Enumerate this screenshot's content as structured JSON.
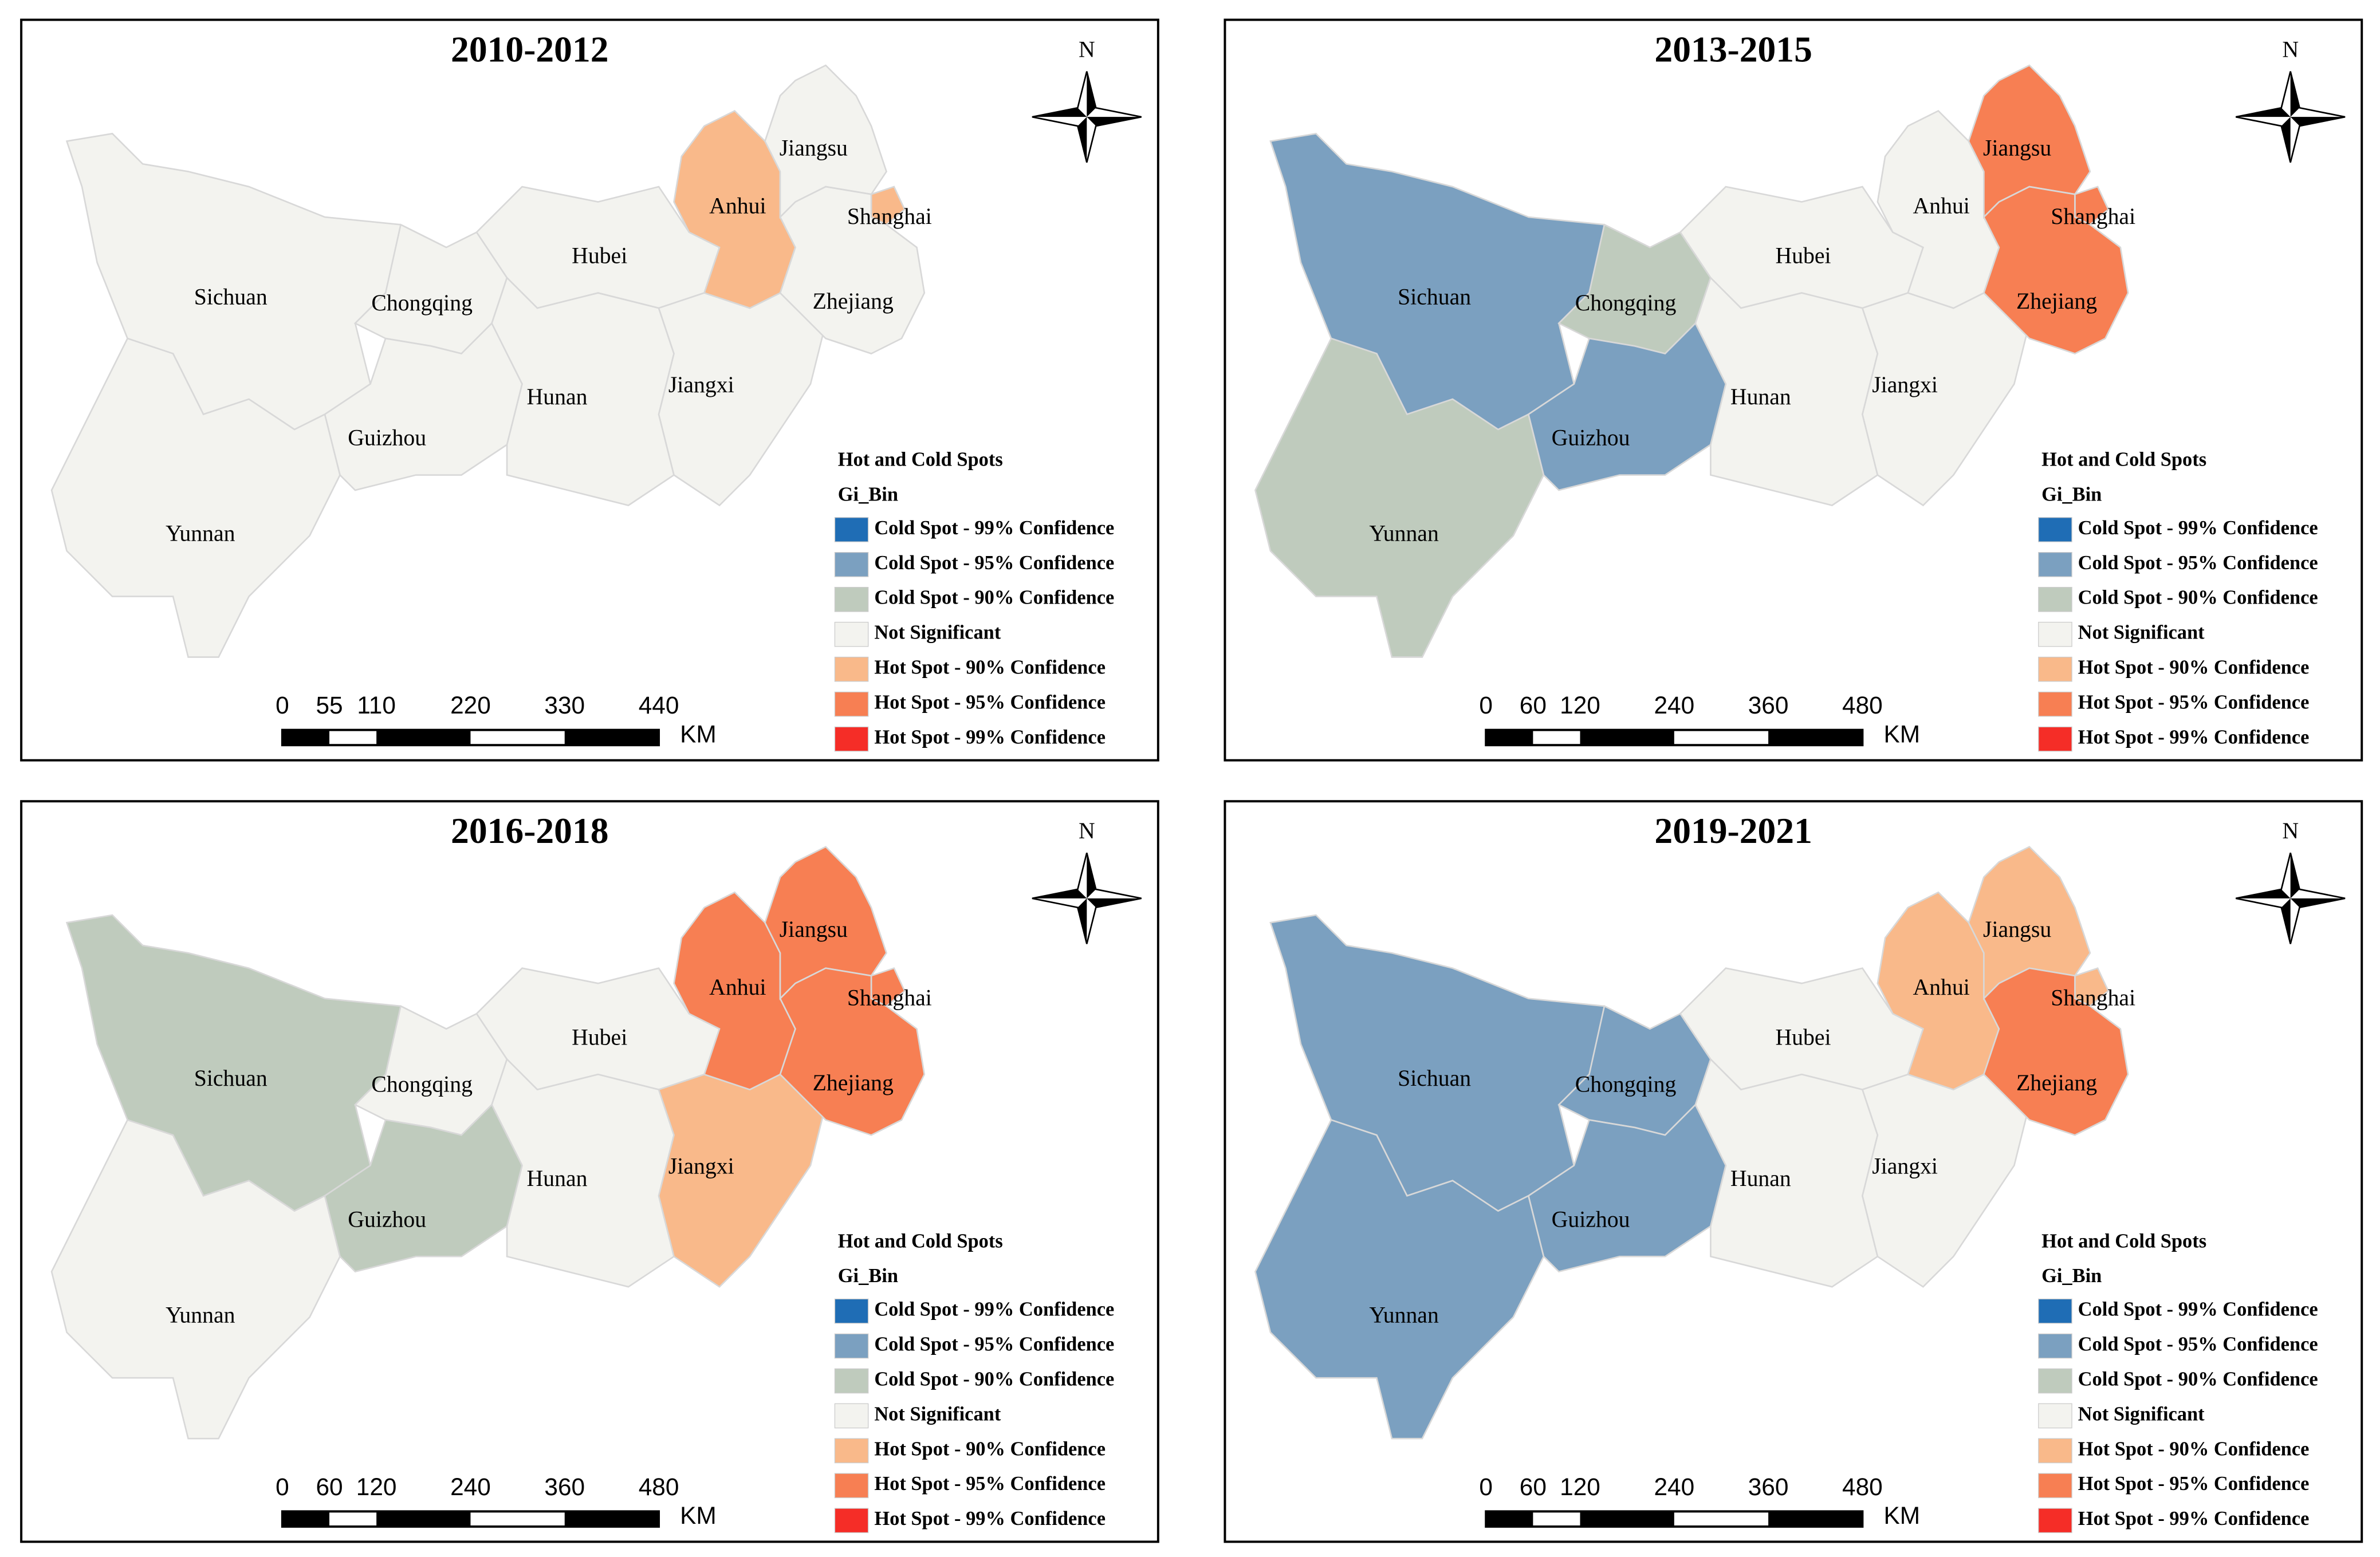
{
  "panels": [
    {
      "title": "2010-2012",
      "north": "N",
      "provinces": [
        {
          "name": "Sichuan",
          "spot": "Not Significant"
        },
        {
          "name": "Yunnan",
          "spot": "Not Significant"
        },
        {
          "name": "Chongqing",
          "spot": "Not Significant"
        },
        {
          "name": "Guizhou",
          "spot": "Not Significant"
        },
        {
          "name": "Hubei",
          "spot": "Not Significant"
        },
        {
          "name": "Hunan",
          "spot": "Not Significant"
        },
        {
          "name": "Jiangxi",
          "spot": "Not Significant"
        },
        {
          "name": "Anhui",
          "spot": "Hot Spot - 90% Confidence"
        },
        {
          "name": "Jiangsu",
          "spot": "Not Significant"
        },
        {
          "name": "Shanghai",
          "spot": "Hot Spot - 90% Confidence"
        },
        {
          "name": "Zhejiang",
          "spot": "Not Significant"
        }
      ],
      "legend": {
        "title": "Hot and Cold Spots",
        "field": "Gi_Bin",
        "items": [
          {
            "label": "Cold Spot - 99% Confidence",
            "color": "#1f6db5"
          },
          {
            "label": "Cold Spot - 95% Confidence",
            "color": "#7ba0c0"
          },
          {
            "label": "Cold Spot - 90% Confidence",
            "color": "#bfcbbd"
          },
          {
            "label": "Not Significant",
            "color": "#f3f3ef"
          },
          {
            "label": "Hot Spot - 90% Confidence",
            "color": "#f9b98a"
          },
          {
            "label": "Hot Spot - 95% Confidence",
            "color": "#f77f53"
          },
          {
            "label": "Hot Spot - 99% Confidence",
            "color": "#f52d27"
          }
        ]
      },
      "scale": {
        "ticks": [
          0,
          55,
          110,
          220,
          330,
          440
        ],
        "unit": "KM"
      }
    },
    {
      "title": "2013-2015",
      "north": "N",
      "provinces": [
        {
          "name": "Sichuan",
          "spot": "Cold Spot - 95% Confidence"
        },
        {
          "name": "Yunnan",
          "spot": "Cold Spot - 90% Confidence"
        },
        {
          "name": "Chongqing",
          "spot": "Cold Spot - 90% Confidence"
        },
        {
          "name": "Guizhou",
          "spot": "Cold Spot - 95% Confidence"
        },
        {
          "name": "Hubei",
          "spot": "Not Significant"
        },
        {
          "name": "Hunan",
          "spot": "Not Significant"
        },
        {
          "name": "Jiangxi",
          "spot": "Not Significant"
        },
        {
          "name": "Anhui",
          "spot": "Not Significant"
        },
        {
          "name": "Jiangsu",
          "spot": "Hot Spot - 95% Confidence"
        },
        {
          "name": "Shanghai",
          "spot": "Hot Spot - 95% Confidence"
        },
        {
          "name": "Zhejiang",
          "spot": "Hot Spot - 95% Confidence"
        }
      ],
      "legend": {
        "title": "Hot and Cold Spots",
        "field": "Gi_Bin",
        "items": [
          {
            "label": "Cold Spot - 99% Confidence",
            "color": "#1f6db5"
          },
          {
            "label": "Cold Spot - 95% Confidence",
            "color": "#7ba0c0"
          },
          {
            "label": "Cold Spot - 90% Confidence",
            "color": "#bfcbbd"
          },
          {
            "label": "Not Significant",
            "color": "#f3f3ef"
          },
          {
            "label": "Hot Spot - 90% Confidence",
            "color": "#f9b98a"
          },
          {
            "label": "Hot Spot - 95% Confidence",
            "color": "#f77f53"
          },
          {
            "label": "Hot Spot - 99% Confidence",
            "color": "#f52d27"
          }
        ]
      },
      "scale": {
        "ticks": [
          0,
          60,
          120,
          240,
          360,
          480
        ],
        "unit": "KM"
      }
    },
    {
      "title": "2016-2018",
      "north": "N",
      "provinces": [
        {
          "name": "Sichuan",
          "spot": "Cold Spot - 90% Confidence"
        },
        {
          "name": "Yunnan",
          "spot": "Not Significant"
        },
        {
          "name": "Chongqing",
          "spot": "Not Significant"
        },
        {
          "name": "Guizhou",
          "spot": "Cold Spot - 90% Confidence"
        },
        {
          "name": "Hubei",
          "spot": "Not Significant"
        },
        {
          "name": "Hunan",
          "spot": "Not Significant"
        },
        {
          "name": "Jiangxi",
          "spot": "Hot Spot - 90% Confidence"
        },
        {
          "name": "Anhui",
          "spot": "Hot Spot - 95% Confidence"
        },
        {
          "name": "Jiangsu",
          "spot": "Hot Spot - 95% Confidence"
        },
        {
          "name": "Shanghai",
          "spot": "Hot Spot - 95% Confidence"
        },
        {
          "name": "Zhejiang",
          "spot": "Hot Spot - 95% Confidence"
        }
      ],
      "legend": {
        "title": "Hot and Cold Spots",
        "field": "Gi_Bin",
        "items": [
          {
            "label": "Cold Spot - 99% Confidence",
            "color": "#1f6db5"
          },
          {
            "label": "Cold Spot - 95% Confidence",
            "color": "#7ba0c0"
          },
          {
            "label": "Cold Spot - 90% Confidence",
            "color": "#bfcbbd"
          },
          {
            "label": "Not Significant",
            "color": "#f3f3ef"
          },
          {
            "label": "Hot Spot - 90% Confidence",
            "color": "#f9b98a"
          },
          {
            "label": "Hot Spot - 95% Confidence",
            "color": "#f77f53"
          },
          {
            "label": "Hot Spot - 99% Confidence",
            "color": "#f52d27"
          }
        ]
      },
      "scale": {
        "ticks": [
          0,
          60,
          120,
          240,
          360,
          480
        ],
        "unit": "KM"
      }
    },
    {
      "title": "2019-2021",
      "north": "N",
      "provinces": [
        {
          "name": "Sichuan",
          "spot": "Cold Spot - 95% Confidence"
        },
        {
          "name": "Yunnan",
          "spot": "Cold Spot - 95% Confidence"
        },
        {
          "name": "Chongqing",
          "spot": "Cold Spot - 95% Confidence"
        },
        {
          "name": "Guizhou",
          "spot": "Cold Spot - 95% Confidence"
        },
        {
          "name": "Hubei",
          "spot": "Not Significant"
        },
        {
          "name": "Hunan",
          "spot": "Not Significant"
        },
        {
          "name": "Jiangxi",
          "spot": "Not Significant"
        },
        {
          "name": "Anhui",
          "spot": "Hot Spot - 90% Confidence"
        },
        {
          "name": "Jiangsu",
          "spot": "Hot Spot - 90% Confidence"
        },
        {
          "name": "Shanghai",
          "spot": "Hot Spot - 90% Confidence"
        },
        {
          "name": "Zhejiang",
          "spot": "Hot Spot - 95% Confidence"
        }
      ],
      "legend": {
        "title": "Hot and Cold Spots",
        "field": "Gi_Bin",
        "items": [
          {
            "label": "Cold Spot - 99% Confidence",
            "color": "#1f6db5"
          },
          {
            "label": "Cold Spot - 95% Confidence",
            "color": "#7ba0c0"
          },
          {
            "label": "Cold Spot - 90% Confidence",
            "color": "#bfcbbd"
          },
          {
            "label": "Not Significant",
            "color": "#f3f3ef"
          },
          {
            "label": "Hot Spot - 90% Confidence",
            "color": "#f9b98a"
          },
          {
            "label": "Hot Spot - 95% Confidence",
            "color": "#f77f53"
          },
          {
            "label": "Hot Spot - 99% Confidence",
            "color": "#f52d27"
          }
        ]
      },
      "scale": {
        "ticks": [
          0,
          60,
          120,
          240,
          360,
          480
        ],
        "unit": "KM"
      }
    }
  ]
}
